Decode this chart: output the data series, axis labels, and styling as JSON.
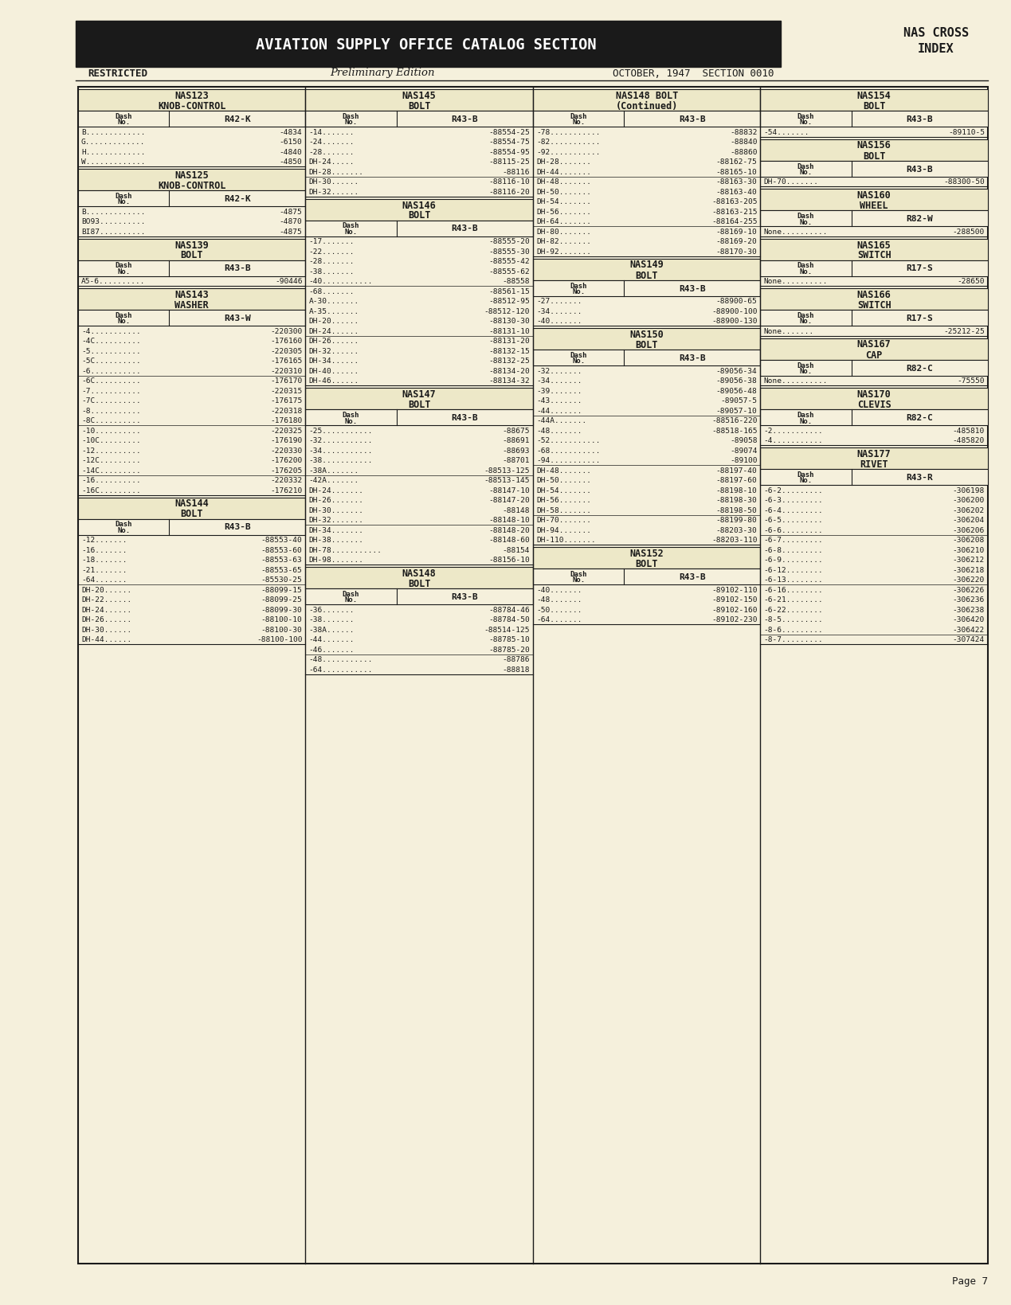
{
  "bg_color": "#f5f0dc",
  "header_bg": "#1a1a1a",
  "header_text": "AVIATION SUPPLY OFFICE CATALOG SECTION",
  "header_text_color": "#ffffff",
  "restricted": "RESTRICTED",
  "preliminary": "Preliminary Edition",
  "date_section": "OCTOBER, 1947  SECTION 0010",
  "page_num": "Page 7",
  "columns": [
    {
      "sections": [
        {
          "title": "NAS123\nKNOB-CONTROL",
          "ref_col": "R42-K",
          "rows": [
            [
              "B.............",
              "-4834"
            ],
            [
              "G.............",
              "-6150"
            ],
            [
              "H.............",
              "-4840"
            ],
            [
              "W.............",
              "-4850"
            ]
          ]
        },
        {
          "title": "NAS125\nKNOB-CONTROL",
          "ref_col": "R42-K",
          "rows": [
            [
              "B.............",
              "-4875"
            ],
            [
              "BO93..........",
              "-4870"
            ],
            [
              "BI87..........",
              "-4875"
            ]
          ]
        },
        {
          "title": "NAS139\nBOLT",
          "ref_col": "R43-B",
          "rows": [
            [
              "A5-6..........",
              "-90446"
            ]
          ]
        },
        {
          "title": "NAS143\nWASHER",
          "ref_col": "R43-W",
          "rows": [
            [
              "-4...........",
              "-220300"
            ],
            [
              "-4C..........",
              "-176160"
            ],
            [
              "-5...........",
              "-220305"
            ],
            [
              "-5C..........",
              "-176165"
            ],
            [
              "-6...........",
              "-220310"
            ],
            [
              "",
              ""
            ],
            [
              "-6C..........",
              "-176170"
            ],
            [
              "-7...........",
              "-220315"
            ],
            [
              "-7C..........",
              "-176175"
            ],
            [
              "-8...........",
              "-220318"
            ],
            [
              "-8C..........",
              "-176180"
            ],
            [
              "",
              ""
            ],
            [
              "-10..........",
              "-220325"
            ],
            [
              "-10C.........",
              "-176190"
            ],
            [
              "-12..........",
              "-220330"
            ],
            [
              "-12C.........",
              "-176200"
            ],
            [
              "-14C.........",
              "-176205"
            ],
            [
              "",
              ""
            ],
            [
              "-16..........",
              "-220332"
            ],
            [
              "-16C.........",
              "-176210"
            ]
          ]
        },
        {
          "title": "NAS144\nBOLT",
          "ref_col": "R43-B",
          "rows": [
            [
              "-12.......",
              "-88553-40"
            ],
            [
              "-16.......",
              "-88553-60"
            ],
            [
              "-18.......",
              "-88553-63"
            ],
            [
              "-21.......",
              "-88553-65"
            ],
            [
              "-64.......",
              "-85530-25"
            ],
            [
              "",
              ""
            ],
            [
              "DH-20......",
              "-88099-15"
            ],
            [
              "DH-22......",
              "-88099-25"
            ],
            [
              "DH-24......",
              "-88099-30"
            ],
            [
              "DH-26......",
              "-88100-10"
            ],
            [
              "DH-30......",
              "-88100-30"
            ],
            [
              "DH-44......",
              "-88100-100"
            ]
          ]
        }
      ]
    },
    {
      "sections": [
        {
          "title": "NAS145\nBOLT",
          "ref_col": "R43-B",
          "rows": [
            [
              "-14.......",
              "-88554-25"
            ],
            [
              "-24.......",
              "-88554-75"
            ],
            [
              "-28.......",
              "-88554-95"
            ],
            [
              "DH-24.....",
              "-88115-25"
            ],
            [
              "DH-28.......",
              "-88116"
            ],
            [
              "",
              ""
            ],
            [
              "DH-30......",
              "-88116-10"
            ],
            [
              "DH-32......",
              "-88116-20"
            ]
          ]
        },
        {
          "title": "NAS146\nBOLT",
          "ref_col": "R43-B",
          "rows": [
            [
              "-17.......",
              "-88555-20"
            ],
            [
              "-22.......",
              "-88555-30"
            ],
            [
              "-28.......",
              "-88555-42"
            ],
            [
              "-38.......",
              "-88555-62"
            ],
            [
              "-40...........",
              "-88558"
            ],
            [
              "",
              ""
            ],
            [
              "-68.......",
              "-88561-15"
            ],
            [
              "A-30.......",
              "-88512-95"
            ],
            [
              "A-35.......",
              "-88512-120"
            ],
            [
              "DH-20......",
              "-88130-30"
            ],
            [
              "DH-24......",
              "-88131-10"
            ],
            [
              "",
              ""
            ],
            [
              "DH-26......",
              "-88131-20"
            ],
            [
              "DH-32......",
              "-88132-15"
            ],
            [
              "DH-34......",
              "-88132-25"
            ],
            [
              "DH-40......",
              "-88134-20"
            ],
            [
              "DH-46......",
              "-88134-32"
            ]
          ]
        },
        {
          "title": "NAS147\nBOLT",
          "ref_col": "R43-B",
          "rows": [
            [
              "-25...........",
              "-88675"
            ],
            [
              "-32...........",
              "-88691"
            ],
            [
              "-34...........",
              "-88693"
            ],
            [
              "-38...........",
              "-88701"
            ],
            [
              "-38A.......",
              "-88513-125"
            ],
            [
              "",
              ""
            ],
            [
              "-42A.......",
              "-88513-145"
            ],
            [
              "DH-24.......",
              "-88147-10"
            ],
            [
              "DH-26.......",
              "-88147-20"
            ],
            [
              "DH-30.......",
              "-88148"
            ],
            [
              "DH-32.......",
              "-88148-10"
            ],
            [
              "",
              ""
            ],
            [
              "DH-34.......",
              "-88148-20"
            ],
            [
              "DH-38.......",
              "-88148-60"
            ],
            [
              "DH-78...........",
              "-88154"
            ],
            [
              "DH-98.......",
              "-88156-10"
            ]
          ]
        },
        {
          "title": "NAS148\nBOLT",
          "ref_col": "R43-B",
          "rows": [
            [
              "-36.......",
              "-88784-46"
            ],
            [
              "-38.......",
              "-88784-50"
            ],
            [
              "-38A......",
              "-88514-125"
            ],
            [
              "-44.......",
              "-88785-10"
            ],
            [
              "-46.......",
              "-88785-20"
            ],
            [
              "",
              ""
            ],
            [
              "-48...........",
              "-88786"
            ],
            [
              "-64...........",
              "-88818"
            ]
          ]
        }
      ]
    },
    {
      "sections": [
        {
          "title": "NAS148 BOLT\n(Continued)",
          "ref_col": "R43-B",
          "rows": [
            [
              "-78...........",
              "-88832"
            ],
            [
              "-82...........",
              "-88840"
            ],
            [
              "-92...........",
              "-88860"
            ],
            [
              "DH-28.......",
              "-88162-75"
            ],
            [
              "DH-44.......",
              "-88165-10"
            ],
            [
              "",
              ""
            ],
            [
              "DH-48.......",
              "-88163-30"
            ],
            [
              "DH-50.......",
              "-88163-40"
            ],
            [
              "DH-54.......",
              "-88163-205"
            ],
            [
              "DH-56.......",
              "-88163-215"
            ],
            [
              "DH-64.......",
              "-88164-255"
            ],
            [
              "",
              ""
            ],
            [
              "DH-80.......",
              "-88169-10"
            ],
            [
              "DH-82.......",
              "-88169-20"
            ],
            [
              "DH-92.......",
              "-88170-30"
            ]
          ]
        },
        {
          "title": "NAS149\nBOLT",
          "ref_col": "R43-B",
          "rows": [
            [
              "-27.......",
              "-88900-65"
            ],
            [
              "-34.......",
              "-88900-100"
            ],
            [
              "-40.......",
              "-88900-130"
            ]
          ]
        },
        {
          "title": "NAS150\nBOLT",
          "ref_col": "R43-B",
          "rows": [
            [
              "-32.......",
              "-89056-34"
            ],
            [
              "-34.......",
              "-89056-38"
            ],
            [
              "-39.......",
              "-89056-48"
            ],
            [
              "-43.......",
              "-89057-5"
            ],
            [
              "-44.......",
              "-89057-10"
            ],
            [
              "",
              ""
            ],
            [
              "-44A.......",
              "-88516-220"
            ],
            [
              "-48.......",
              "-88518-165"
            ],
            [
              "-52...........",
              "-89058"
            ],
            [
              "-68...........",
              "-89074"
            ],
            [
              "-94...........",
              "-89100"
            ],
            [
              "",
              ""
            ],
            [
              "DH-48.......",
              "-88197-40"
            ],
            [
              "DH-50.......",
              "-88197-60"
            ],
            [
              "DH-54.......",
              "-88198-10"
            ],
            [
              "DH-56.......",
              "-88198-30"
            ],
            [
              "DH-58.......",
              "-88198-50"
            ],
            [
              "",
              ""
            ],
            [
              "DH-70.......",
              "-88199-80"
            ],
            [
              "DH-94.......",
              "-88203-30"
            ],
            [
              "DH-110.......",
              "-88203-110"
            ]
          ]
        },
        {
          "title": "NAS152\nBOLT",
          "ref_col": "R43-B",
          "rows": [
            [
              "-40.......",
              "-89102-110"
            ],
            [
              "-48.......",
              "-89102-150"
            ],
            [
              "-50.......",
              "-89102-160"
            ],
            [
              "-64.......",
              "-89102-230"
            ]
          ]
        }
      ]
    },
    {
      "sections": [
        {
          "title": "NAS154\nBOLT",
          "ref_col": "R43-B",
          "rows": [
            [
              "-54.......",
              "-89110-5"
            ]
          ]
        },
        {
          "title": "NAS156\nBOLT",
          "ref_col": "R43-B",
          "rows": [
            [
              "DH-70.......",
              "-88300-50"
            ]
          ]
        },
        {
          "title": "NAS160\nWHEEL",
          "ref_col": "R82-W",
          "rows": [
            [
              "None..........",
              "-288500"
            ]
          ]
        },
        {
          "title": "NAS165\nSWITCH",
          "ref_col": "R17-S",
          "rows": [
            [
              "None..........",
              "-28650"
            ]
          ]
        },
        {
          "title": "NAS166\nSWITCH",
          "ref_col": "R17-S",
          "rows": [
            [
              "None.......",
              "-25212-25"
            ]
          ]
        },
        {
          "title": "NAS167\nCAP",
          "ref_col": "R82-C",
          "rows": [
            [
              "None..........",
              "-75550"
            ]
          ]
        },
        {
          "title": "NAS170\nCLEVIS",
          "ref_col": "R82-C",
          "rows": [
            [
              "-2...........",
              "-485810"
            ],
            [
              "-4...........",
              "-485820"
            ]
          ]
        },
        {
          "title": "NAS177\nRIVET",
          "ref_col": "R43-R",
          "rows": [
            [
              "-6-2.........",
              "-306198"
            ],
            [
              "-6-3.........",
              "-306200"
            ],
            [
              "-6-4.........",
              "-306202"
            ],
            [
              "-6-5.........",
              "-306204"
            ],
            [
              "-6-6.........",
              "-306206"
            ],
            [
              "",
              ""
            ],
            [
              "-6-7.........",
              "-306208"
            ],
            [
              "-6-8.........",
              "-306210"
            ],
            [
              "-6-9.........",
              "-306212"
            ],
            [
              "-6-12........",
              "-306218"
            ],
            [
              "-6-13........",
              "-306220"
            ],
            [
              "",
              ""
            ],
            [
              "-6-16........",
              "-306226"
            ],
            [
              "-6-21........",
              "-306236"
            ],
            [
              "-6-22........",
              "-306238"
            ],
            [
              "-8-5.........",
              "-306420"
            ],
            [
              "-8-6.........",
              "-306422"
            ],
            [
              "",
              ""
            ],
            [
              "-8-7.........",
              "-307424"
            ]
          ]
        }
      ]
    }
  ]
}
